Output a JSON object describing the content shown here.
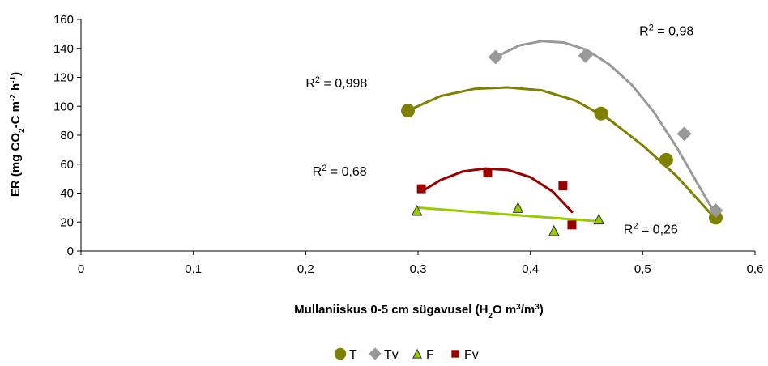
{
  "chart_data": {
    "type": "scatter",
    "title": "",
    "xlabel": {
      "pre": "Mullaniiskus 0-5 cm sügavusel (H",
      "sub": "2",
      "mid1": "O m",
      "sup1": "3",
      "mid2": "/m",
      "sup2": "3",
      "post": ")"
    },
    "ylabel": {
      "pre": "ER (mg CO",
      "sub": "2",
      "mid1": "-C m",
      "sup1": "-2",
      "mid2": " h",
      "sup2": "-1",
      "post": ")"
    },
    "xlim": [
      0,
      0.6
    ],
    "ylim": [
      0,
      160
    ],
    "xticks": [
      "0",
      "0,1",
      "0,2",
      "0,3",
      "0,4",
      "0,5",
      "0,6"
    ],
    "yticks": [
      "0",
      "20",
      "40",
      "60",
      "80",
      "100",
      "120",
      "140",
      "160"
    ],
    "legend_position": "bottom",
    "series": [
      {
        "name": "T",
        "marker": "circle",
        "color": "#808000",
        "points": [
          [
            0.291,
            97
          ],
          [
            0.463,
            95
          ],
          [
            0.521,
            63
          ],
          [
            0.565,
            23
          ]
        ],
        "trend": [
          [
            0.291,
            97
          ],
          [
            0.32,
            107
          ],
          [
            0.35,
            112
          ],
          [
            0.38,
            113
          ],
          [
            0.41,
            111
          ],
          [
            0.44,
            104
          ],
          [
            0.47,
            91
          ],
          [
            0.5,
            73
          ],
          [
            0.53,
            52
          ],
          [
            0.565,
            22
          ]
        ]
      },
      {
        "name": "Tv",
        "marker": "diamond",
        "color": "#999999",
        "points": [
          [
            0.369,
            134
          ],
          [
            0.449,
            135
          ],
          [
            0.537,
            81
          ],
          [
            0.565,
            28
          ]
        ],
        "trend": [
          [
            0.369,
            134
          ],
          [
            0.39,
            142
          ],
          [
            0.41,
            145
          ],
          [
            0.43,
            144
          ],
          [
            0.45,
            139
          ],
          [
            0.47,
            129
          ],
          [
            0.49,
            115
          ],
          [
            0.51,
            96
          ],
          [
            0.53,
            72
          ],
          [
            0.55,
            45
          ],
          [
            0.565,
            25
          ]
        ]
      },
      {
        "name": "F",
        "marker": "triangle",
        "color": "#99CC00",
        "edge": "#333333",
        "points": [
          [
            0.299,
            28
          ],
          [
            0.389,
            30
          ],
          [
            0.421,
            14
          ],
          [
            0.461,
            22
          ]
        ],
        "trend": [
          [
            0.299,
            30
          ],
          [
            0.461,
            20.5
          ]
        ]
      },
      {
        "name": "Fv",
        "marker": "square",
        "color": "#990000",
        "points": [
          [
            0.303,
            43
          ],
          [
            0.362,
            54
          ],
          [
            0.429,
            45
          ],
          [
            0.437,
            18
          ]
        ],
        "trend": [
          [
            0.303,
            41
          ],
          [
            0.32,
            49
          ],
          [
            0.34,
            55
          ],
          [
            0.36,
            57
          ],
          [
            0.38,
            56
          ],
          [
            0.4,
            51
          ],
          [
            0.42,
            41
          ],
          [
            0.437,
            27
          ]
        ]
      }
    ],
    "annotations": [
      {
        "text": "= 0,998",
        "at": [
          0.2,
          113
        ]
      },
      {
        "text": "= 0,98",
        "at": [
          0.497,
          149
        ]
      },
      {
        "text": "= 0,68",
        "at": [
          0.206,
          52
        ]
      },
      {
        "text": "= 0,26",
        "at": [
          0.483,
          12
        ]
      }
    ],
    "annotation_prefix": "R",
    "annotation_exponent": "2"
  }
}
